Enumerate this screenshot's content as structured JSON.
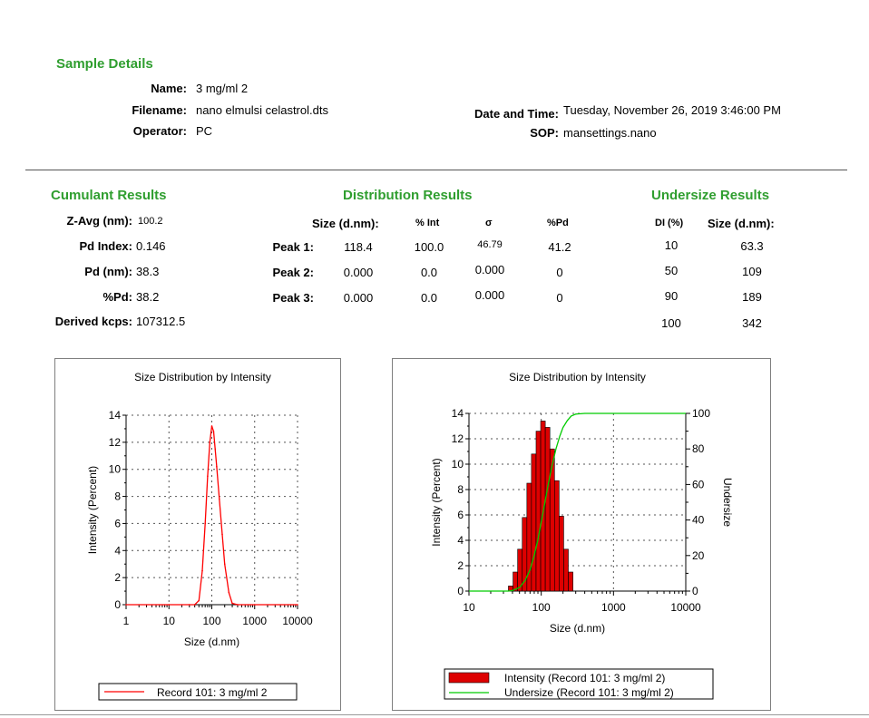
{
  "sample": {
    "header": "Sample Details",
    "name_label": "Name:",
    "name": "3 mg/ml 2",
    "filename_label": "Filename:",
    "filename": "nano elmulsi celastrol.dts",
    "operator_label": "Operator:",
    "operator": "PC",
    "datetime_label": "Date and Time:",
    "datetime": "Tuesday, November 26, 2019 3:46:00 PM",
    "sop_label": "SOP:",
    "sop": "mansettings.nano"
  },
  "cumulant": {
    "header": "Cumulant Results",
    "rows": [
      {
        "label": "Z-Avg (nm):",
        "value": "100.2"
      },
      {
        "label": "Pd Index:",
        "value": "0.146"
      },
      {
        "label": "Pd (nm):",
        "value": "38.3"
      },
      {
        "label": "%Pd:",
        "value": "38.2"
      },
      {
        "label": "Derived kcps:",
        "value": "107312.5"
      }
    ]
  },
  "distribution": {
    "header": "Distribution Results",
    "col_size": "Size (d.nm):",
    "col_int": "% Int",
    "col_sigma": "σ",
    "col_pd": "%Pd",
    "peaks": [
      {
        "label": "Peak 1:",
        "size": "118.4",
        "int": "100.0",
        "sigma": "46.79",
        "pd": "41.2"
      },
      {
        "label": "Peak 2:",
        "size": "0.000",
        "int": "0.0",
        "sigma": "0.000",
        "pd": "0"
      },
      {
        "label": "Peak 3:",
        "size": "0.000",
        "int": "0.0",
        "sigma": "0.000",
        "pd": "0"
      }
    ]
  },
  "undersize": {
    "header": "Undersize Results",
    "col_di": "DI (%)",
    "col_size": "Size (d.nm):",
    "rows": [
      {
        "di": "10",
        "size": "63.3"
      },
      {
        "di": "50",
        "size": "109"
      },
      {
        "di": "90",
        "size": "189"
      },
      {
        "di": "100",
        "size": "342"
      }
    ]
  },
  "colors": {
    "header_green": "#2f9e2f",
    "line_red": "#ff0000",
    "bar_red": "#dd0000",
    "undersize_green": "#00cc00"
  },
  "chart_data": [
    {
      "type": "line",
      "title": "Size Distribution by Intensity",
      "xlabel": "Size (d.nm)",
      "ylabel": "Intensity (Percent)",
      "xscale": "log",
      "xlim": [
        1,
        10000
      ],
      "ylim": [
        0,
        14
      ],
      "xticks": [
        "1",
        "10",
        "100",
        "1000",
        "10000"
      ],
      "yticks": [
        "0",
        "2",
        "4",
        "6",
        "8",
        "10",
        "12",
        "14"
      ],
      "grid": true,
      "legend": "bottom",
      "series": [
        {
          "name": "Record 101: 3 mg/ml 2",
          "x": [
            1,
            10,
            30,
            40,
            50,
            60,
            70,
            80,
            90,
            100,
            110,
            120,
            130,
            150,
            175,
            200,
            250,
            300,
            400,
            1000,
            10000
          ],
          "y": [
            0,
            0,
            0,
            0,
            0.3,
            2.5,
            6.0,
            9.5,
            12.0,
            13.2,
            12.8,
            11.5,
            10.2,
            7.8,
            5.2,
            3.0,
            0.9,
            0.1,
            0,
            0,
            0
          ]
        }
      ]
    },
    {
      "type": "bar",
      "title": "Size Distribution by Intensity",
      "xlabel": "Size (d.nm)",
      "ylabel": "Intensity (Percent)",
      "y2label": "Undersize",
      "xscale": "log",
      "xlim": [
        10,
        10000
      ],
      "ylim": [
        0,
        14
      ],
      "y2lim": [
        0,
        100
      ],
      "xticks": [
        "10",
        "100",
        "1000",
        "10000"
      ],
      "yticks": [
        "0",
        "2",
        "4",
        "6",
        "8",
        "10",
        "12",
        "14"
      ],
      "y2ticks": [
        "0",
        "20",
        "40",
        "60",
        "80",
        "100"
      ],
      "grid": true,
      "legend": "bottom",
      "series": [
        {
          "name": "Intensity (Record 101: 3 mg/ml 2)",
          "x": [
            37.8,
            43.8,
            50.7,
            58.8,
            68.1,
            78.8,
            91.3,
            105.7,
            122.4,
            141.8,
            164.2,
            190.1,
            220.2,
            255.0
          ],
          "y": [
            0.4,
            1.5,
            3.3,
            5.8,
            8.5,
            10.8,
            12.6,
            13.4,
            12.9,
            11.2,
            8.7,
            5.9,
            3.3,
            1.5
          ]
        },
        {
          "name": "Undersize (Record 101: 3 mg/ml 2)",
          "x": [
            10,
            35,
            40,
            50,
            60,
            70,
            80,
            90,
            100,
            110,
            125,
            140,
            160,
            180,
            200,
            230,
            260,
            300,
            400,
            10000
          ],
          "y": [
            0,
            0,
            0.3,
            2,
            6,
            12,
            20,
            29,
            39,
            48,
            60,
            70,
            80,
            87,
            92,
            96,
            98.5,
            99.6,
            100,
            100
          ]
        }
      ]
    }
  ]
}
